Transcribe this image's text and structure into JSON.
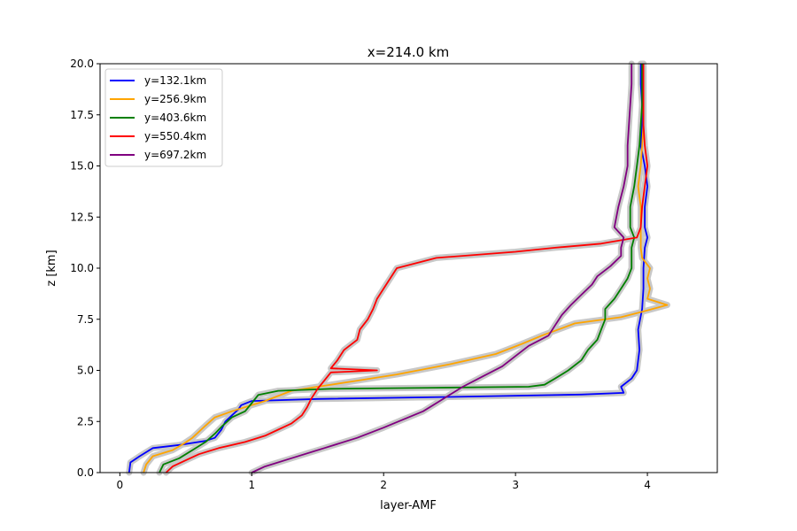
{
  "chart_data": {
    "type": "line",
    "title": "x=214.0 km",
    "xlabel": "layer-AMF",
    "ylabel": "z [km]",
    "xlim": [
      -0.15,
      4.53
    ],
    "ylim": [
      0,
      20
    ],
    "xticks": [
      0,
      1,
      2,
      3,
      4
    ],
    "xtick_labels": [
      "0",
      "1",
      "2",
      "3",
      "4"
    ],
    "yticks": [
      0,
      2.5,
      5,
      7.5,
      10,
      12.5,
      15,
      17.5,
      20
    ],
    "ytick_labels": [
      "0.0",
      "2.5",
      "5.0",
      "7.5",
      "10.0",
      "12.5",
      "15.0",
      "17.5",
      "20.0"
    ],
    "grid": false,
    "legend_position": "upper-left",
    "band_color": "#c8c8c8",
    "series": [
      {
        "name": "y=132.1km",
        "color": "#0000ff",
        "points": [
          [
            0.07,
            0
          ],
          [
            0.08,
            0.5
          ],
          [
            0.15,
            0.8
          ],
          [
            0.25,
            1.2
          ],
          [
            0.45,
            1.35
          ],
          [
            0.55,
            1.45
          ],
          [
            0.65,
            1.55
          ],
          [
            0.72,
            1.7
          ],
          [
            0.77,
            2.1
          ],
          [
            0.8,
            2.5
          ],
          [
            0.85,
            2.8
          ],
          [
            0.9,
            3.1
          ],
          [
            0.92,
            3.3
          ],
          [
            1.0,
            3.5
          ],
          [
            1.5,
            3.6
          ],
          [
            2.5,
            3.7
          ],
          [
            3.5,
            3.82
          ],
          [
            3.82,
            3.9
          ],
          [
            3.8,
            4.2
          ],
          [
            3.88,
            4.6
          ],
          [
            3.92,
            5.0
          ],
          [
            3.94,
            6.0
          ],
          [
            3.93,
            7.0
          ],
          [
            3.96,
            8.0
          ],
          [
            3.97,
            9.0
          ],
          [
            3.97,
            10.0
          ],
          [
            3.98,
            11.0
          ],
          [
            4.0,
            11.5
          ],
          [
            3.98,
            12.0
          ],
          [
            3.98,
            13.0
          ],
          [
            4.0,
            14.0
          ],
          [
            3.98,
            15.0
          ],
          [
            3.95,
            16.0
          ],
          [
            3.96,
            17.0
          ],
          [
            3.96,
            18.0
          ],
          [
            3.95,
            19.0
          ],
          [
            3.95,
            20
          ]
        ]
      },
      {
        "name": "y=256.9km",
        "color": "#ffa500",
        "points": [
          [
            0.18,
            0
          ],
          [
            0.2,
            0.4
          ],
          [
            0.25,
            0.8
          ],
          [
            0.4,
            1.1
          ],
          [
            0.48,
            1.4
          ],
          [
            0.55,
            1.7
          ],
          [
            0.6,
            2.0
          ],
          [
            0.65,
            2.3
          ],
          [
            0.72,
            2.7
          ],
          [
            0.85,
            3.0
          ],
          [
            1.1,
            3.5
          ],
          [
            1.3,
            4.0
          ],
          [
            1.5,
            4.2
          ],
          [
            1.8,
            4.5
          ],
          [
            2.1,
            4.8
          ],
          [
            2.5,
            5.3
          ],
          [
            2.85,
            5.8
          ],
          [
            3.05,
            6.3
          ],
          [
            3.2,
            6.7
          ],
          [
            3.45,
            7.3
          ],
          [
            3.8,
            7.6
          ],
          [
            3.98,
            7.9
          ],
          [
            4.15,
            8.2
          ],
          [
            4.0,
            8.5
          ],
          [
            4.02,
            9.0
          ],
          [
            4.0,
            9.5
          ],
          [
            4.02,
            10.0
          ],
          [
            3.96,
            10.5
          ],
          [
            3.95,
            11.0
          ],
          [
            3.95,
            12.0
          ],
          [
            3.95,
            13.0
          ],
          [
            3.93,
            14.0
          ],
          [
            3.95,
            15.0
          ],
          [
            3.96,
            16.0
          ],
          [
            3.97,
            17.0
          ],
          [
            3.97,
            18.0
          ],
          [
            3.97,
            19.0
          ],
          [
            3.97,
            20
          ]
        ]
      },
      {
        "name": "y=403.6km",
        "color": "#008000",
        "points": [
          [
            0.3,
            0
          ],
          [
            0.33,
            0.4
          ],
          [
            0.45,
            0.7
          ],
          [
            0.55,
            1.1
          ],
          [
            0.65,
            1.5
          ],
          [
            0.72,
            1.9
          ],
          [
            0.78,
            2.3
          ],
          [
            0.85,
            2.7
          ],
          [
            0.95,
            3.0
          ],
          [
            1.0,
            3.4
          ],
          [
            1.05,
            3.8
          ],
          [
            1.2,
            4.0
          ],
          [
            1.6,
            4.1
          ],
          [
            2.4,
            4.15
          ],
          [
            3.1,
            4.2
          ],
          [
            3.22,
            4.3
          ],
          [
            3.3,
            4.6
          ],
          [
            3.4,
            5.0
          ],
          [
            3.5,
            5.5
          ],
          [
            3.55,
            6.0
          ],
          [
            3.62,
            6.5
          ],
          [
            3.65,
            7.0
          ],
          [
            3.68,
            7.5
          ],
          [
            3.68,
            8.0
          ],
          [
            3.75,
            8.5
          ],
          [
            3.8,
            9.0
          ],
          [
            3.85,
            9.5
          ],
          [
            3.88,
            10.0
          ],
          [
            3.88,
            11.0
          ],
          [
            3.9,
            11.5
          ],
          [
            3.87,
            12.0
          ],
          [
            3.87,
            13.0
          ],
          [
            3.9,
            14.0
          ],
          [
            3.92,
            15.0
          ],
          [
            3.94,
            16.0
          ],
          [
            3.95,
            17.0
          ],
          [
            3.96,
            18.0
          ],
          [
            3.96,
            19.0
          ],
          [
            3.96,
            20
          ]
        ]
      },
      {
        "name": "y=550.4km",
        "color": "#ff0000",
        "points": [
          [
            0.35,
            0
          ],
          [
            0.4,
            0.3
          ],
          [
            0.5,
            0.6
          ],
          [
            0.6,
            0.9
          ],
          [
            0.75,
            1.2
          ],
          [
            0.95,
            1.5
          ],
          [
            1.1,
            1.8
          ],
          [
            1.2,
            2.1
          ],
          [
            1.3,
            2.4
          ],
          [
            1.38,
            2.8
          ],
          [
            1.42,
            3.2
          ],
          [
            1.45,
            3.6
          ],
          [
            1.5,
            4.1
          ],
          [
            1.55,
            4.5
          ],
          [
            1.6,
            4.9
          ],
          [
            1.95,
            5.0
          ],
          [
            1.6,
            5.1
          ],
          [
            1.65,
            5.5
          ],
          [
            1.7,
            6.0
          ],
          [
            1.8,
            6.5
          ],
          [
            1.82,
            7.0
          ],
          [
            1.88,
            7.5
          ],
          [
            1.92,
            8.0
          ],
          [
            1.95,
            8.5
          ],
          [
            2.0,
            9.0
          ],
          [
            2.05,
            9.5
          ],
          [
            2.1,
            10.0
          ],
          [
            2.4,
            10.5
          ],
          [
            3.0,
            10.8
          ],
          [
            3.3,
            11.0
          ],
          [
            3.65,
            11.2
          ],
          [
            3.92,
            11.5
          ],
          [
            3.95,
            12.0
          ],
          [
            3.96,
            13.0
          ],
          [
            3.98,
            14.0
          ],
          [
            4.0,
            15.0
          ],
          [
            3.98,
            16.0
          ],
          [
            3.97,
            17.0
          ],
          [
            3.97,
            18.0
          ],
          [
            3.97,
            19.0
          ],
          [
            3.97,
            20
          ]
        ]
      },
      {
        "name": "y=697.2km",
        "color": "#800080",
        "points": [
          [
            1.0,
            0
          ],
          [
            1.1,
            0.3
          ],
          [
            1.3,
            0.7
          ],
          [
            1.55,
            1.2
          ],
          [
            1.8,
            1.7
          ],
          [
            2.0,
            2.2
          ],
          [
            2.15,
            2.6
          ],
          [
            2.3,
            3.0
          ],
          [
            2.4,
            3.4
          ],
          [
            2.5,
            3.8
          ],
          [
            2.6,
            4.2
          ],
          [
            2.75,
            4.7
          ],
          [
            2.9,
            5.2
          ],
          [
            3.0,
            5.7
          ],
          [
            3.1,
            6.2
          ],
          [
            3.25,
            6.7
          ],
          [
            3.3,
            7.2
          ],
          [
            3.35,
            7.7
          ],
          [
            3.42,
            8.2
          ],
          [
            3.5,
            8.7
          ],
          [
            3.58,
            9.2
          ],
          [
            3.62,
            9.6
          ],
          [
            3.72,
            10.1
          ],
          [
            3.8,
            10.6
          ],
          [
            3.8,
            11.0
          ],
          [
            3.82,
            11.5
          ],
          [
            3.75,
            12.0
          ],
          [
            3.78,
            13.0
          ],
          [
            3.82,
            14.0
          ],
          [
            3.85,
            15.0
          ],
          [
            3.85,
            16.0
          ],
          [
            3.86,
            17.0
          ],
          [
            3.87,
            18.0
          ],
          [
            3.88,
            19.0
          ],
          [
            3.88,
            20
          ]
        ]
      }
    ]
  }
}
